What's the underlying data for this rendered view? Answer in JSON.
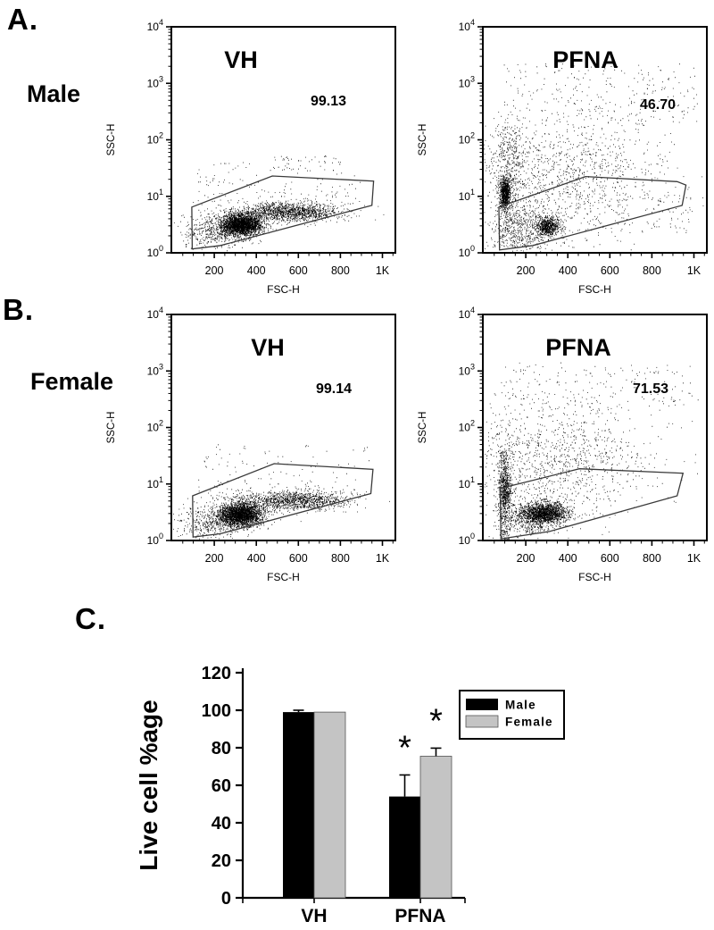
{
  "panels": {
    "A": {
      "label": "A.",
      "row_label": "Male"
    },
    "B": {
      "label": "B.",
      "row_label": "Female"
    },
    "C": {
      "label": "C."
    }
  },
  "chart_data": [
    {
      "type": "scatter",
      "svg_id": "flow0",
      "panel": "A",
      "group": "Male",
      "title": "VH",
      "gate_percent": "99.13",
      "xlabel": "FSC-H",
      "ylabel": "SSC-H",
      "x_ticks": [
        [
          200,
          "200"
        ],
        [
          400,
          "400"
        ],
        [
          600,
          "600"
        ],
        [
          800,
          "800"
        ],
        [
          1000,
          "1K"
        ]
      ],
      "x_minor_step": 50,
      "xlim": [
        0,
        1064
      ],
      "y_scale": "log",
      "y_decades": [
        "0",
        "1",
        "2",
        "3",
        "4"
      ],
      "ylim_log": [
        0,
        4
      ],
      "seed": 7,
      "gate": [
        [
          93,
          0.81
        ],
        [
          476,
          1.36
        ],
        [
          958,
          1.27
        ],
        [
          950,
          0.84
        ],
        [
          230,
          0.13
        ],
        [
          95,
          0.07
        ]
      ],
      "clusters": [
        {
          "n": 2600,
          "x": [
            "n",
            330,
            48
          ],
          "ly": [
            "n",
            0.5,
            0.095
          ]
        },
        {
          "n": 1400,
          "x": [
            "n",
            560,
            125
          ],
          "ly": [
            "n",
            0.72,
            0.08
          ]
        },
        {
          "n": 430,
          "x": [
            "n",
            205,
            70
          ],
          "ly": [
            "n",
            0.38,
            0.15
          ]
        },
        {
          "n": 130,
          "x": [
            "u",
            120,
            900
          ],
          "ly": [
            "n",
            0.98,
            0.2
          ]
        },
        {
          "n": 55,
          "x": [
            "u",
            450,
            800
          ],
          "ly": [
            "u",
            1.45,
            1.72
          ]
        },
        {
          "n": 30,
          "x": [
            "u",
            120,
            420
          ],
          "ly": [
            "u",
            1.2,
            1.6
          ]
        },
        {
          "n": 25,
          "x": [
            "u",
            60,
            180
          ],
          "ly": [
            "u",
            0.05,
            0.6
          ]
        }
      ]
    },
    {
      "type": "scatter",
      "svg_id": "flow1",
      "panel": "A",
      "group": "Male",
      "title": "PFNA",
      "gate_percent": "46.70",
      "xlabel": "FSC-H",
      "ylabel": "SSC-H",
      "x_ticks": [
        [
          200,
          "200"
        ],
        [
          400,
          "400"
        ],
        [
          600,
          "600"
        ],
        [
          800,
          "800"
        ],
        [
          1000,
          "1K"
        ]
      ],
      "x_minor_step": 50,
      "xlim": [
        0,
        1064
      ],
      "y_scale": "log",
      "y_decades": [
        "0",
        "1",
        "2",
        "3",
        "4"
      ],
      "ylim_log": [
        0,
        4
      ],
      "seed": 13,
      "gate": [
        [
          72,
          0.81
        ],
        [
          484,
          1.35
        ],
        [
          920,
          1.26
        ],
        [
          962,
          1.2
        ],
        [
          944,
          0.84
        ],
        [
          234,
          0.13
        ],
        [
          75,
          0.05
        ]
      ],
      "clusters": [
        {
          "n": 800,
          "x": [
            "n",
            100,
            13
          ],
          "ly": [
            "n",
            1.05,
            0.14
          ]
        },
        {
          "n": 600,
          "x": [
            "n",
            120,
            35
          ],
          "ly": [
            "u",
            0.1,
            2.25
          ]
        },
        {
          "n": 650,
          "x": [
            "n",
            305,
            30
          ],
          "ly": [
            "n",
            0.47,
            0.09
          ]
        },
        {
          "n": 450,
          "x": [
            "n",
            210,
            80
          ],
          "ly": [
            "n",
            0.4,
            0.22
          ]
        },
        {
          "n": 1200,
          "x": [
            "n",
            380,
            260
          ],
          "ly": [
            "n",
            1.4,
            0.55
          ]
        },
        {
          "n": 250,
          "x": [
            "u",
            95,
            1020
          ],
          "ly": [
            "u",
            2.25,
            3.35
          ]
        },
        {
          "n": 90,
          "x": [
            "u",
            480,
            1020
          ],
          "ly": [
            "u",
            0.35,
            1.05
          ]
        }
      ]
    },
    {
      "type": "scatter",
      "svg_id": "flow2",
      "panel": "B",
      "group": "Female",
      "title": "VH",
      "gate_percent": "99.14",
      "xlabel": "FSC-H",
      "ylabel": "SSC-H",
      "x_ticks": [
        [
          200,
          "200"
        ],
        [
          400,
          "400"
        ],
        [
          600,
          "600"
        ],
        [
          800,
          "800"
        ],
        [
          1000,
          "1K"
        ]
      ],
      "x_minor_step": 50,
      "xlim": [
        0,
        1064
      ],
      "y_scale": "log",
      "y_decades": [
        "0",
        "1",
        "2",
        "3",
        "4"
      ],
      "ylim_log": [
        0,
        4
      ],
      "seed": 21,
      "gate": [
        [
          97,
          0.79
        ],
        [
          485,
          1.36
        ],
        [
          955,
          1.26
        ],
        [
          945,
          0.83
        ],
        [
          230,
          0.12
        ],
        [
          99,
          0.06
        ]
      ],
      "clusters": [
        {
          "n": 2700,
          "x": [
            "n",
            325,
            52
          ],
          "ly": [
            "n",
            0.46,
            0.105
          ]
        },
        {
          "n": 1250,
          "x": [
            "n",
            575,
            128
          ],
          "ly": [
            "n",
            0.7,
            0.085
          ]
        },
        {
          "n": 450,
          "x": [
            "n",
            195,
            75
          ],
          "ly": [
            "n",
            0.33,
            0.16
          ]
        },
        {
          "n": 110,
          "x": [
            "u",
            120,
            900
          ],
          "ly": [
            "n",
            0.95,
            0.2
          ]
        },
        {
          "n": 45,
          "x": [
            "u",
            150,
            960
          ],
          "ly": [
            "u",
            1.25,
            1.7
          ]
        },
        {
          "n": 25,
          "x": [
            "u",
            55,
            170
          ],
          "ly": [
            "u",
            0.05,
            0.55
          ]
        }
      ]
    },
    {
      "type": "scatter",
      "svg_id": "flow3",
      "panel": "B",
      "group": "Female",
      "title": "PFNA",
      "gate_percent": "71.53",
      "xlabel": "FSC-H",
      "ylabel": "SSC-H",
      "x_ticks": [
        [
          200,
          "200"
        ],
        [
          400,
          "400"
        ],
        [
          600,
          "600"
        ],
        [
          800,
          "800"
        ],
        [
          1000,
          "1K"
        ]
      ],
      "x_minor_step": 50,
      "xlim": [
        0,
        1064
      ],
      "y_scale": "log",
      "y_decades": [
        "0",
        "1",
        "2",
        "3",
        "4"
      ],
      "ylim_log": [
        0,
        4
      ],
      "seed": 29,
      "gate": [
        [
          78,
          0.92
        ],
        [
          455,
          1.27
        ],
        [
          948,
          1.19
        ],
        [
          920,
          0.79
        ],
        [
          313,
          0.16
        ],
        [
          82,
          0.03
        ]
      ],
      "clusters": [
        {
          "n": 1600,
          "x": [
            "n",
            295,
            52
          ],
          "ly": [
            "n",
            0.48,
            0.1
          ]
        },
        {
          "n": 520,
          "x": [
            "n",
            210,
            60
          ],
          "ly": [
            "n",
            0.4,
            0.16
          ]
        },
        {
          "n": 500,
          "x": [
            "n",
            96,
            13
          ],
          "ly": [
            "u",
            0.0,
            1.6
          ]
        },
        {
          "n": 380,
          "x": [
            "n",
            103,
            18
          ],
          "ly": [
            "n",
            0.92,
            0.18
          ]
        },
        {
          "n": 1250,
          "x": [
            "n",
            330,
            240
          ],
          "ly": [
            "n",
            1.45,
            0.52
          ]
        },
        {
          "n": 170,
          "x": [
            "u",
            90,
            1020
          ],
          "ly": [
            "u",
            2.3,
            3.15
          ]
        }
      ]
    },
    {
      "type": "bar",
      "svg_id": "barchart",
      "panel": "C",
      "title": "",
      "ylabel": "Live cell %age",
      "categories": [
        "VH",
        "PFNA"
      ],
      "series": [
        {
          "name": "Male",
          "color": "#000000",
          "values": [
            99,
            54
          ],
          "errors": [
            1,
            11.5
          ]
        },
        {
          "name": "Female",
          "color": "#c4c4c4",
          "values": [
            99,
            75.5
          ],
          "errors": [
            0,
            4.3
          ]
        }
      ],
      "ylim": [
        0,
        120
      ],
      "yticks": [
        0,
        20,
        40,
        60,
        80,
        100,
        120
      ],
      "legend_position": "upper right",
      "sig_markers": [
        {
          "category_index": 1,
          "series_index": 0,
          "label": "*"
        },
        {
          "category_index": 1,
          "series_index": 1,
          "label": "*"
        }
      ]
    }
  ]
}
